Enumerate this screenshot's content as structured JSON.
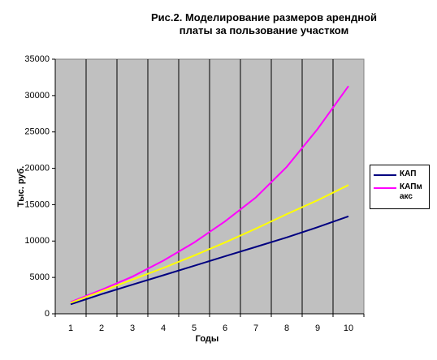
{
  "chart_data": {
    "type": "line",
    "title": "Рис.2. Моделирование размеров арендной платы за пользование участком",
    "x_label": "Годы",
    "y_label": "Тыс. руб.",
    "categories": [
      "1",
      "2",
      "3",
      "4",
      "5",
      "6",
      "7",
      "8",
      "9",
      "10"
    ],
    "series": [
      {
        "name": "КАП",
        "color": "#000080",
        "values": [
          1300,
          2700,
          4000,
          5300,
          6600,
          7900,
          9200,
          10500,
          11900,
          13400
        ]
      },
      {
        "name": "КАПмакс",
        "color": "#ff00ff",
        "values": [
          1600,
          3300,
          5100,
          7300,
          9800,
          12700,
          16000,
          20200,
          25400,
          31300
        ]
      },
      {
        "color": "#ffff00",
        "values": [
          1500,
          3100,
          4700,
          6300,
          8000,
          9800,
          11700,
          13700,
          15600,
          17700
        ]
      }
    ],
    "ylim": [
      0,
      35000
    ],
    "yticks": [
      0,
      5000,
      10000,
      15000,
      20000,
      25000,
      30000,
      35000
    ],
    "plot_background": "#c0c0c0",
    "vertical_grid": true
  }
}
